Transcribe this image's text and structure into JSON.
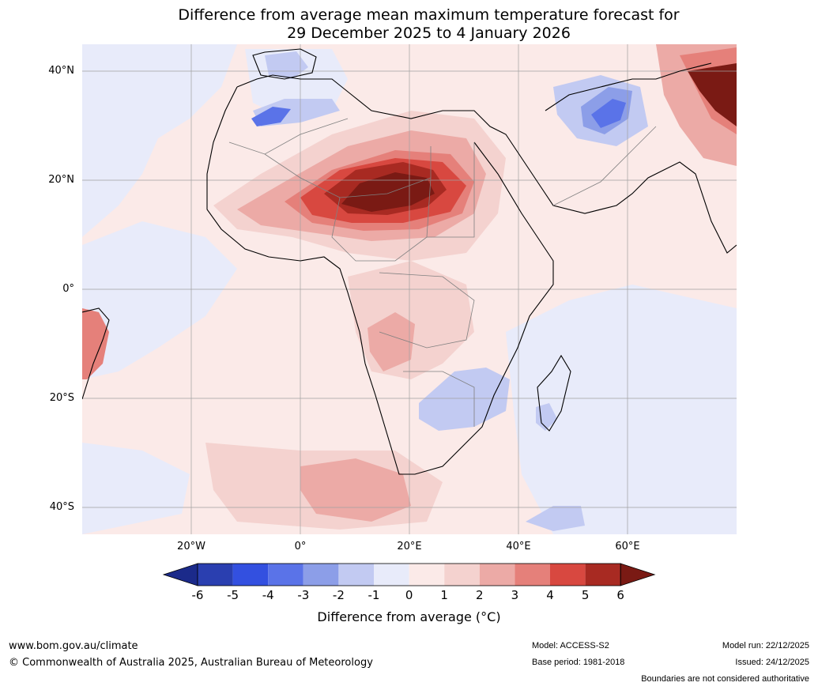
{
  "title": {
    "line1": "Difference from average mean maximum temperature forecast for",
    "line2": "29 December 2025 to 4 January 2026"
  },
  "map": {
    "lat_labels": [
      "40°N",
      "20°N",
      "0°",
      "20°S",
      "40°S"
    ],
    "lon_labels": [
      "20°W",
      "0°",
      "20°E",
      "40°E",
      "60°E"
    ]
  },
  "colorbar": {
    "ticks": [
      "-6",
      "-5",
      "-4",
      "-3",
      "-2",
      "-1",
      "0",
      "1",
      "2",
      "3",
      "4",
      "5",
      "6"
    ],
    "colors": [
      "#1b2a8a",
      "#2a3fb0",
      "#3350e0",
      "#5a73e8",
      "#8c9ee8",
      "#c2caf2",
      "#e8ebfa",
      "#fbeae8",
      "#f4d2cf",
      "#ecaaa6",
      "#e5807a",
      "#d84840",
      "#a82a22",
      "#7a1a14"
    ],
    "label": "Difference from average (°C)"
  },
  "footer": {
    "website": "www.bom.gov.au/climate",
    "copyright": "© Commonwealth of Australia 2025, Australian Bureau of Meteorology",
    "model": "Model: ACCESS-S2",
    "base_period": "Base period: 1981-2018",
    "model_run": "Model run: 22/12/2025",
    "issued": "Issued: 24/12/2025",
    "disclaimer": "Boundaries are not considered authoritative"
  }
}
